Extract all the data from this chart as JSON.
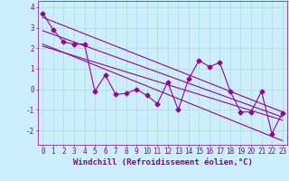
{
  "title": "",
  "xlabel": "Windchill (Refroidissement éolien,°C)",
  "ylabel": "",
  "background_color": "#cceeff",
  "line_color": "#990099",
  "xlim": [
    -0.5,
    23.5
  ],
  "ylim": [
    -2.7,
    4.3
  ],
  "yticks": [
    -2,
    -1,
    0,
    1,
    2,
    3,
    4
  ],
  "xticks": [
    0,
    1,
    2,
    3,
    4,
    5,
    6,
    7,
    8,
    9,
    10,
    11,
    12,
    13,
    14,
    15,
    16,
    17,
    18,
    19,
    20,
    21,
    22,
    23
  ],
  "xtick_labels": [
    "0",
    "1",
    "2",
    "3",
    "4",
    "5",
    "6",
    "7",
    "8",
    "9",
    "10",
    "11",
    "12",
    "13",
    "14",
    "15",
    "16",
    "17",
    "18",
    "19",
    "20",
    "21",
    "22",
    "23"
  ],
  "data_x": [
    0,
    1,
    2,
    3,
    4,
    5,
    6,
    7,
    8,
    9,
    10,
    11,
    12,
    13,
    14,
    15,
    16,
    17,
    18,
    19,
    20,
    21,
    22,
    23
  ],
  "data_y": [
    3.7,
    2.9,
    2.3,
    2.2,
    2.2,
    -0.1,
    0.7,
    -0.25,
    -0.2,
    0.0,
    -0.3,
    -0.7,
    0.35,
    -1.0,
    0.5,
    1.4,
    1.1,
    1.3,
    -0.1,
    -1.1,
    -1.1,
    -0.1,
    -2.15,
    -1.15
  ],
  "trend_lines": [
    {
      "x0": 0,
      "y0": 3.5,
      "x1": 23,
      "y1": -1.1
    },
    {
      "x0": 0,
      "y0": 2.85,
      "x1": 23,
      "y1": -1.35
    },
    {
      "x0": 0,
      "y0": 2.2,
      "x1": 23,
      "y1": -2.5
    },
    {
      "x0": 0,
      "y0": 2.1,
      "x1": 23,
      "y1": -1.5
    }
  ],
  "grid_color": "#aaddcc",
  "font_color": "#880088",
  "font_size": 5.5,
  "xlabel_fontsize": 6.5,
  "marker": "D",
  "marker_size": 2.5,
  "line_width": 0.8
}
